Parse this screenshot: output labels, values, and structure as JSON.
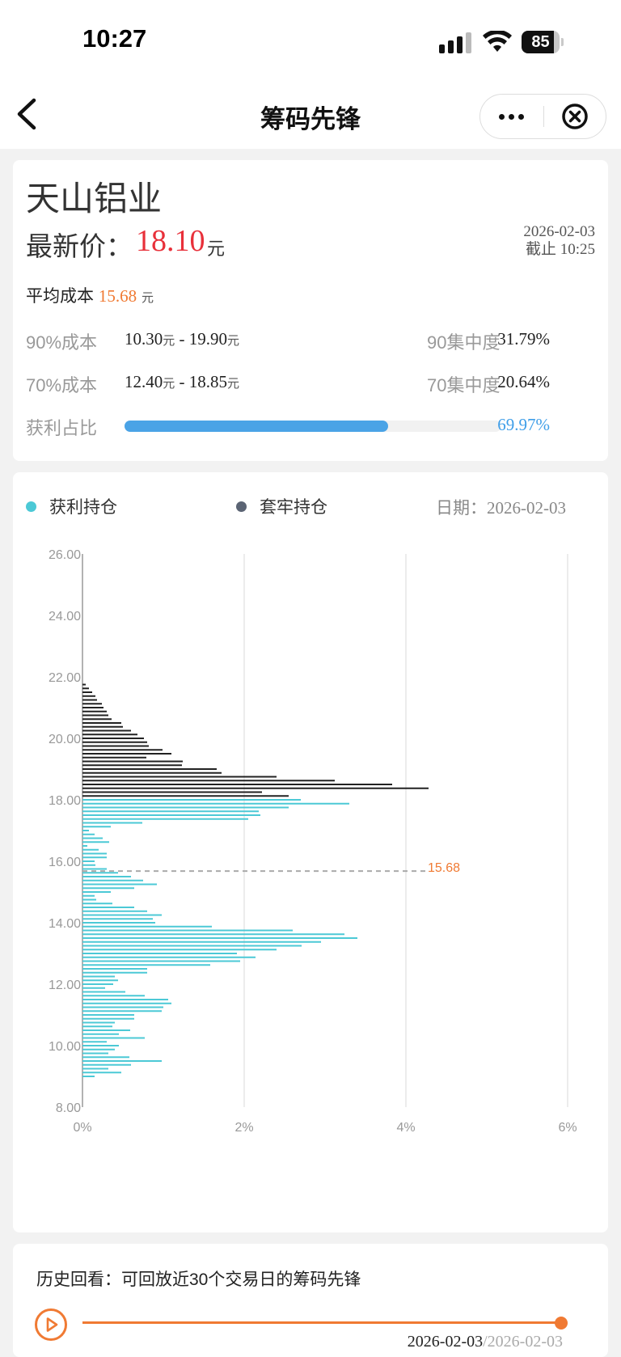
{
  "status_bar": {
    "time": "10:27",
    "battery": "85"
  },
  "nav": {
    "title": "筹码先锋"
  },
  "stock": {
    "name": "天山铝业",
    "price_label": "最新价：",
    "price": "18.10",
    "price_unit": "元",
    "date": "2026-02-03",
    "as_of": "截止 10:25",
    "avg_cost_label": "平均成本",
    "avg_cost": "15.68",
    "avg_cost_unit": "元",
    "cost90_label": "90%成本",
    "cost90_low": "10.30",
    "cost90_high": "19.90",
    "cost70_label": "70%成本",
    "cost70_low": "12.40",
    "cost70_high": "18.85",
    "unit": "元",
    "range_sep": " - ",
    "conc90_label": "90集中度",
    "conc90": "31.79%",
    "conc70_label": "70集中度",
    "conc70": "20.64%",
    "profit_label": "获利占比",
    "profit_ratio": "69.97%",
    "profit_fraction": 0.6997,
    "colors": {
      "price": "#e8303a",
      "avg": "#f07a33",
      "profit_bar": "#4aa3e6"
    }
  },
  "chart_legend": {
    "profit": "获利持仓",
    "trapped": "套牢持仓",
    "date_label": "日期：",
    "date": "2026-02-03",
    "profit_color": "#4cc9d6",
    "trapped_color": "#5b6474"
  },
  "chart_data": {
    "type": "bar",
    "orientation": "horizontal",
    "y_ticks": [
      "8.00",
      "10.00",
      "12.00",
      "14.00",
      "16.00",
      "18.00",
      "20.00",
      "22.00",
      "24.00",
      "26.00"
    ],
    "x_ticks": [
      "0%",
      "2%",
      "4%",
      "6%"
    ],
    "ylim": [
      8,
      26
    ],
    "xlim": [
      0,
      6
    ],
    "avg_cost_line": {
      "value": 15.68,
      "label": "15.68",
      "color": "#f07a33"
    },
    "current_price": 18.1,
    "series": [
      {
        "name": "获利持仓",
        "color": "#4cc9d6",
        "price": [
          9.0,
          9.125,
          9.25,
          9.375,
          9.5,
          9.625,
          9.75,
          9.875,
          10.0,
          10.125,
          10.25,
          10.375,
          10.5,
          10.625,
          10.75,
          10.875,
          11.0,
          11.125,
          11.25,
          11.375,
          11.5,
          11.625,
          11.75,
          11.875,
          12.0,
          12.125,
          12.25,
          12.375,
          12.5,
          12.625,
          12.75,
          12.875,
          13.0,
          13.125,
          13.25,
          13.375,
          13.5,
          13.625,
          13.75,
          13.875,
          14.0,
          14.125,
          14.25,
          14.375,
          14.5,
          14.625,
          14.75,
          14.875,
          15.0,
          15.125,
          15.25,
          15.375,
          15.5,
          15.625,
          15.75,
          15.875,
          16.0,
          16.125,
          16.25,
          16.375,
          16.5,
          16.625,
          16.75,
          16.875,
          17.0,
          17.125,
          17.25,
          17.375,
          17.5,
          17.625,
          17.75,
          17.875,
          18.0
        ],
        "values": [
          0.15,
          0.48,
          0.32,
          0.6,
          0.98,
          0.58,
          0.32,
          0.4,
          0.45,
          0.3,
          0.77,
          0.45,
          0.59,
          0.37,
          0.4,
          0.64,
          0.64,
          0.98,
          1.0,
          1.1,
          1.06,
          0.77,
          0.53,
          0.28,
          0.38,
          0.44,
          0.4,
          0.8,
          0.8,
          1.58,
          1.95,
          2.14,
          1.91,
          2.4,
          2.71,
          2.95,
          3.4,
          3.24,
          2.6,
          1.6,
          0.9,
          0.87,
          0.98,
          0.8,
          0.64,
          0.37,
          0.17,
          0.15,
          0.35,
          0.64,
          0.92,
          0.75,
          0.6,
          0.44,
          0.3,
          0.16,
          0.15,
          0.3,
          0.3,
          0.2,
          0.06,
          0.33,
          0.25,
          0.15,
          0.08,
          0.35,
          0.74,
          2.05,
          2.2,
          2.18,
          2.55,
          3.3,
          2.7
        ]
      },
      {
        "name": "套牢持仓",
        "color": "#222222",
        "price": [
          18.125,
          18.25,
          18.375,
          18.5,
          18.625,
          18.75,
          18.875,
          19.0,
          19.125,
          19.25,
          19.375,
          19.5,
          19.625,
          19.75,
          19.875,
          20.0,
          20.125,
          20.25,
          20.375,
          20.5,
          20.625,
          20.75,
          20.875,
          21.0,
          21.125,
          21.25,
          21.375,
          21.5,
          21.625,
          21.75
        ],
        "values": [
          2.55,
          2.22,
          4.28,
          3.83,
          3.12,
          2.4,
          1.72,
          1.66,
          1.23,
          1.24,
          0.79,
          1.1,
          0.99,
          0.82,
          0.8,
          0.76,
          0.68,
          0.6,
          0.5,
          0.48,
          0.36,
          0.32,
          0.3,
          0.26,
          0.24,
          0.18,
          0.16,
          0.12,
          0.08,
          0.04
        ]
      }
    ]
  },
  "history": {
    "title": "历史回看：可回放近30个交易日的筹码先锋",
    "current_date": "2026-02-03",
    "end_date": "/2026-02-03",
    "progress": 1.0
  }
}
